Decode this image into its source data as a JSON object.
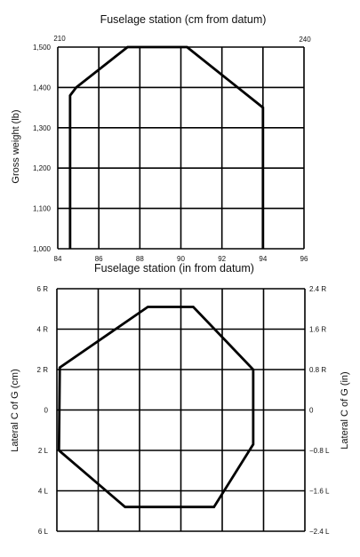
{
  "chart_data": [
    {
      "type": "line",
      "title": "Fuselage station (cm from datum)",
      "top_axis_ticks": [
        "210",
        "240"
      ],
      "xlabel": "Fuselage station (in from datum)",
      "ylabel": "Gross weight (lb)",
      "xlim": [
        84,
        96
      ],
      "ylim": [
        1000,
        1500
      ],
      "xticks": [
        84,
        86,
        88,
        90,
        92,
        94,
        96
      ],
      "xtick_labels": [
        "84",
        "86",
        "88",
        "90",
        "92",
        "94",
        "96"
      ],
      "yticks": [
        1000,
        1100,
        1200,
        1300,
        1400,
        1500
      ],
      "ytick_labels": [
        "1,000",
        "1,100",
        "1,200",
        "1,300",
        "1,400",
        "1,500"
      ],
      "grid": true,
      "series": [
        {
          "x": [
            84.6,
            84.6,
            84.9,
            87.4,
            90.3,
            94.0,
            94.0
          ],
          "y": [
            1000,
            1380,
            1400,
            1500,
            1500,
            1350,
            1000
          ]
        }
      ]
    },
    {
      "type": "line",
      "ylabel": "Lateral C of G (cm)",
      "y2label": "Lateral C of G (in)",
      "xlim": [
        0,
        6
      ],
      "ylim": [
        -6,
        6
      ],
      "yticks": [
        -6,
        -4,
        -2,
        0,
        2,
        4,
        6
      ],
      "ytick_labels": [
        "6 L",
        "4 L",
        "2 L",
        "0",
        "2 R",
        "4 R",
        "6 R"
      ],
      "y2ticks": [
        -2.4,
        -1.6,
        -0.8,
        0,
        0.8,
        1.6,
        2.4
      ],
      "y2tick_labels": [
        "−2.4 L",
        "−1.6 L",
        "−0.8 L",
        "0",
        "0.8 R",
        "1.6 R",
        "2.4 R"
      ],
      "grid": true,
      "series": [
        {
          "x": [
            0.05,
            0.07,
            2.2,
            3.3,
            4.75,
            4.75,
            3.8,
            1.65,
            0.05,
            0.05
          ],
          "y": [
            -2.0,
            2.1,
            5.1,
            5.1,
            2.0,
            -1.7,
            -4.8,
            -4.8,
            -2.0,
            -2.0
          ]
        }
      ]
    }
  ]
}
